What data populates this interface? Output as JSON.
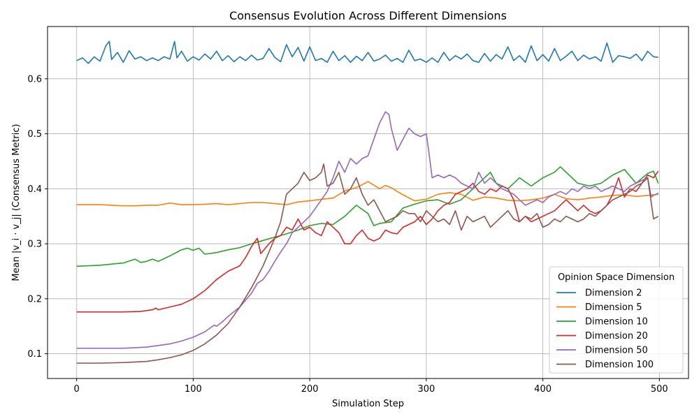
{
  "chart_data": {
    "type": "line",
    "title": "Consensus Evolution Across Different Dimensions",
    "xlabel": "Simulation Step",
    "ylabel": "Mean |v_i · v_j| (Consensus Metric)",
    "xlim": [
      -25,
      525
    ],
    "ylim": [
      0.055,
      0.695
    ],
    "xticks": [
      0,
      100,
      200,
      300,
      400,
      500
    ],
    "yticks": [
      0.1,
      0.2,
      0.3,
      0.4,
      0.5,
      0.6
    ],
    "ytick_labels": [
      "0.1",
      "0.2",
      "0.3",
      "0.4",
      "0.5",
      "0.6"
    ],
    "grid": true,
    "legend": {
      "title": "Opinion Space Dimension",
      "position": "lower-right"
    },
    "series": [
      {
        "name": "Dimension 2",
        "color": "#1f77b4",
        "x": [
          0,
          5,
          10,
          15,
          20,
          25,
          28,
          30,
          35,
          40,
          45,
          50,
          55,
          60,
          65,
          70,
          75,
          80,
          84,
          86,
          90,
          95,
          100,
          105,
          110,
          115,
          120,
          125,
          130,
          135,
          140,
          145,
          150,
          155,
          160,
          165,
          170,
          175,
          180,
          185,
          190,
          195,
          200,
          205,
          210,
          215,
          220,
          225,
          230,
          235,
          240,
          245,
          250,
          255,
          260,
          265,
          270,
          275,
          280,
          285,
          290,
          295,
          300,
          305,
          310,
          315,
          320,
          325,
          330,
          335,
          340,
          345,
          350,
          355,
          360,
          365,
          370,
          375,
          380,
          385,
          390,
          395,
          400,
          405,
          410,
          415,
          420,
          425,
          430,
          435,
          440,
          445,
          450,
          455,
          460,
          465,
          470,
          475,
          480,
          485,
          490,
          495,
          499
        ],
        "y": [
          0.633,
          0.638,
          0.628,
          0.64,
          0.632,
          0.66,
          0.668,
          0.635,
          0.648,
          0.63,
          0.651,
          0.636,
          0.64,
          0.633,
          0.638,
          0.633,
          0.64,
          0.636,
          0.668,
          0.638,
          0.65,
          0.632,
          0.64,
          0.634,
          0.645,
          0.636,
          0.65,
          0.633,
          0.642,
          0.631,
          0.64,
          0.633,
          0.643,
          0.634,
          0.637,
          0.655,
          0.639,
          0.631,
          0.662,
          0.64,
          0.657,
          0.632,
          0.658,
          0.633,
          0.637,
          0.63,
          0.65,
          0.633,
          0.642,
          0.63,
          0.641,
          0.633,
          0.648,
          0.632,
          0.636,
          0.643,
          0.632,
          0.637,
          0.63,
          0.652,
          0.633,
          0.636,
          0.63,
          0.638,
          0.63,
          0.648,
          0.633,
          0.642,
          0.636,
          0.645,
          0.633,
          0.63,
          0.646,
          0.632,
          0.644,
          0.636,
          0.658,
          0.633,
          0.642,
          0.63,
          0.66,
          0.633,
          0.644,
          0.632,
          0.655,
          0.633,
          0.641,
          0.65,
          0.633,
          0.643,
          0.636,
          0.64,
          0.632,
          0.665,
          0.63,
          0.642,
          0.64,
          0.637,
          0.645,
          0.633,
          0.65,
          0.64,
          0.639
        ]
      },
      {
        "name": "Dimension 5",
        "color": "#ff7f0e",
        "x": [
          0,
          20,
          30,
          40,
          50,
          60,
          70,
          80,
          90,
          100,
          110,
          120,
          130,
          140,
          150,
          160,
          170,
          180,
          190,
          200,
          210,
          220,
          230,
          240,
          250,
          260,
          265,
          270,
          275,
          280,
          290,
          300,
          310,
          320,
          330,
          340,
          350,
          360,
          370,
          380,
          390,
          400,
          410,
          420,
          430,
          440,
          450,
          460,
          470,
          480,
          490,
          499
        ],
        "y": [
          0.371,
          0.371,
          0.37,
          0.369,
          0.369,
          0.37,
          0.37,
          0.374,
          0.371,
          0.371,
          0.372,
          0.373,
          0.371,
          0.373,
          0.375,
          0.375,
          0.373,
          0.371,
          0.376,
          0.378,
          0.381,
          0.383,
          0.396,
          0.402,
          0.413,
          0.4,
          0.406,
          0.402,
          0.395,
          0.389,
          0.378,
          0.381,
          0.39,
          0.393,
          0.39,
          0.379,
          0.385,
          0.383,
          0.379,
          0.378,
          0.38,
          0.383,
          0.39,
          0.382,
          0.38,
          0.383,
          0.385,
          0.388,
          0.389,
          0.386,
          0.388,
          0.39
        ]
      },
      {
        "name": "Dimension 10",
        "color": "#2ca02c",
        "x": [
          0,
          20,
          40,
          50,
          55,
          60,
          65,
          70,
          80,
          90,
          95,
          100,
          105,
          110,
          120,
          130,
          140,
          150,
          160,
          170,
          180,
          190,
          200,
          210,
          220,
          230,
          240,
          250,
          255,
          260,
          270,
          280,
          290,
          300,
          310,
          320,
          330,
          340,
          350,
          355,
          360,
          370,
          380,
          390,
          400,
          410,
          415,
          420,
          430,
          440,
          450,
          460,
          470,
          480,
          490,
          495,
          499
        ],
        "y": [
          0.259,
          0.261,
          0.265,
          0.272,
          0.266,
          0.268,
          0.272,
          0.268,
          0.278,
          0.289,
          0.292,
          0.288,
          0.292,
          0.281,
          0.284,
          0.289,
          0.293,
          0.3,
          0.306,
          0.312,
          0.318,
          0.325,
          0.333,
          0.337,
          0.335,
          0.35,
          0.37,
          0.355,
          0.333,
          0.337,
          0.34,
          0.365,
          0.372,
          0.378,
          0.38,
          0.372,
          0.38,
          0.4,
          0.42,
          0.43,
          0.41,
          0.4,
          0.42,
          0.405,
          0.42,
          0.43,
          0.44,
          0.43,
          0.41,
          0.405,
          0.41,
          0.425,
          0.435,
          0.41,
          0.428,
          0.432,
          0.41
        ]
      },
      {
        "name": "Dimension 20",
        "color": "#d62728",
        "x": [
          0,
          20,
          40,
          55,
          65,
          68,
          70,
          80,
          90,
          100,
          110,
          120,
          130,
          140,
          145,
          150,
          155,
          158,
          165,
          170,
          175,
          180,
          185,
          190,
          195,
          200,
          205,
          210,
          215,
          220,
          225,
          230,
          235,
          240,
          245,
          250,
          255,
          260,
          265,
          270,
          275,
          280,
          285,
          290,
          295,
          300,
          305,
          310,
          315,
          320,
          325,
          330,
          335,
          340,
          345,
          350,
          355,
          360,
          365,
          370,
          375,
          380,
          385,
          390,
          395,
          400,
          405,
          410,
          415,
          420,
          425,
          430,
          435,
          440,
          445,
          450,
          455,
          460,
          465,
          470,
          475,
          480,
          485,
          490,
          495,
          499
        ],
        "y": [
          0.176,
          0.176,
          0.176,
          0.177,
          0.18,
          0.183,
          0.18,
          0.185,
          0.19,
          0.2,
          0.215,
          0.235,
          0.25,
          0.26,
          0.275,
          0.295,
          0.31,
          0.282,
          0.3,
          0.31,
          0.315,
          0.33,
          0.325,
          0.345,
          0.325,
          0.33,
          0.32,
          0.315,
          0.34,
          0.33,
          0.32,
          0.3,
          0.3,
          0.315,
          0.325,
          0.31,
          0.305,
          0.31,
          0.325,
          0.32,
          0.318,
          0.33,
          0.335,
          0.34,
          0.35,
          0.335,
          0.345,
          0.36,
          0.37,
          0.375,
          0.39,
          0.395,
          0.4,
          0.41,
          0.395,
          0.39,
          0.4,
          0.395,
          0.405,
          0.4,
          0.38,
          0.34,
          0.35,
          0.34,
          0.345,
          0.35,
          0.355,
          0.36,
          0.37,
          0.38,
          0.37,
          0.36,
          0.37,
          0.36,
          0.355,
          0.36,
          0.37,
          0.39,
          0.42,
          0.385,
          0.4,
          0.395,
          0.41,
          0.425,
          0.42,
          0.432
        ]
      },
      {
        "name": "Dimension 50",
        "color": "#9467bd",
        "x": [
          0,
          20,
          40,
          60,
          70,
          80,
          90,
          100,
          110,
          118,
          120,
          125,
          130,
          140,
          150,
          155,
          160,
          165,
          170,
          175,
          180,
          185,
          190,
          195,
          200,
          205,
          210,
          215,
          220,
          225,
          230,
          235,
          240,
          245,
          250,
          255,
          260,
          265,
          268,
          270,
          275,
          280,
          285,
          290,
          295,
          300,
          302,
          305,
          310,
          315,
          320,
          325,
          330,
          335,
          340,
          345,
          350,
          355,
          360,
          365,
          370,
          375,
          380,
          385,
          390,
          395,
          400,
          405,
          410,
          415,
          420,
          425,
          430,
          435,
          440,
          445,
          450,
          455,
          460,
          465,
          470,
          475,
          480,
          485,
          490,
          493,
          495,
          499
        ],
        "y": [
          0.11,
          0.11,
          0.11,
          0.112,
          0.115,
          0.118,
          0.123,
          0.13,
          0.14,
          0.152,
          0.15,
          0.158,
          0.168,
          0.185,
          0.21,
          0.228,
          0.235,
          0.25,
          0.268,
          0.285,
          0.3,
          0.32,
          0.33,
          0.34,
          0.35,
          0.365,
          0.38,
          0.395,
          0.42,
          0.45,
          0.43,
          0.455,
          0.445,
          0.455,
          0.46,
          0.49,
          0.52,
          0.54,
          0.535,
          0.51,
          0.47,
          0.49,
          0.51,
          0.5,
          0.495,
          0.5,
          0.47,
          0.42,
          0.425,
          0.42,
          0.425,
          0.42,
          0.41,
          0.405,
          0.4,
          0.43,
          0.41,
          0.42,
          0.41,
          0.4,
          0.395,
          0.39,
          0.38,
          0.37,
          0.375,
          0.38,
          0.375,
          0.385,
          0.39,
          0.395,
          0.39,
          0.4,
          0.395,
          0.405,
          0.4,
          0.405,
          0.395,
          0.4,
          0.405,
          0.4,
          0.395,
          0.405,
          0.41,
          0.415,
          0.42,
          0.385,
          0.388,
          0.392
        ]
      },
      {
        "name": "Dimension 100",
        "color": "#8c564b",
        "x": [
          0,
          20,
          40,
          60,
          70,
          80,
          90,
          100,
          110,
          120,
          130,
          140,
          150,
          160,
          170,
          175,
          180,
          185,
          190,
          195,
          200,
          205,
          210,
          212,
          215,
          220,
          225,
          230,
          235,
          240,
          245,
          250,
          255,
          260,
          265,
          270,
          275,
          280,
          285,
          290,
          295,
          300,
          305,
          310,
          315,
          320,
          325,
          330,
          335,
          340,
          345,
          350,
          355,
          360,
          365,
          370,
          375,
          380,
          385,
          390,
          395,
          400,
          405,
          410,
          415,
          420,
          425,
          430,
          435,
          440,
          445,
          450,
          455,
          460,
          465,
          470,
          475,
          480,
          485,
          490,
          495,
          499
        ],
        "y": [
          0.083,
          0.083,
          0.084,
          0.086,
          0.089,
          0.093,
          0.098,
          0.106,
          0.118,
          0.134,
          0.155,
          0.185,
          0.22,
          0.26,
          0.31,
          0.34,
          0.39,
          0.4,
          0.41,
          0.43,
          0.415,
          0.42,
          0.43,
          0.445,
          0.405,
          0.41,
          0.43,
          0.39,
          0.4,
          0.42,
          0.39,
          0.37,
          0.38,
          0.36,
          0.34,
          0.345,
          0.35,
          0.36,
          0.355,
          0.355,
          0.34,
          0.36,
          0.35,
          0.34,
          0.345,
          0.335,
          0.36,
          0.325,
          0.35,
          0.34,
          0.345,
          0.35,
          0.33,
          0.34,
          0.35,
          0.36,
          0.345,
          0.34,
          0.35,
          0.345,
          0.355,
          0.33,
          0.335,
          0.345,
          0.34,
          0.35,
          0.345,
          0.34,
          0.345,
          0.355,
          0.35,
          0.36,
          0.37,
          0.38,
          0.385,
          0.39,
          0.395,
          0.405,
          0.41,
          0.42,
          0.345,
          0.35
        ]
      }
    ]
  }
}
